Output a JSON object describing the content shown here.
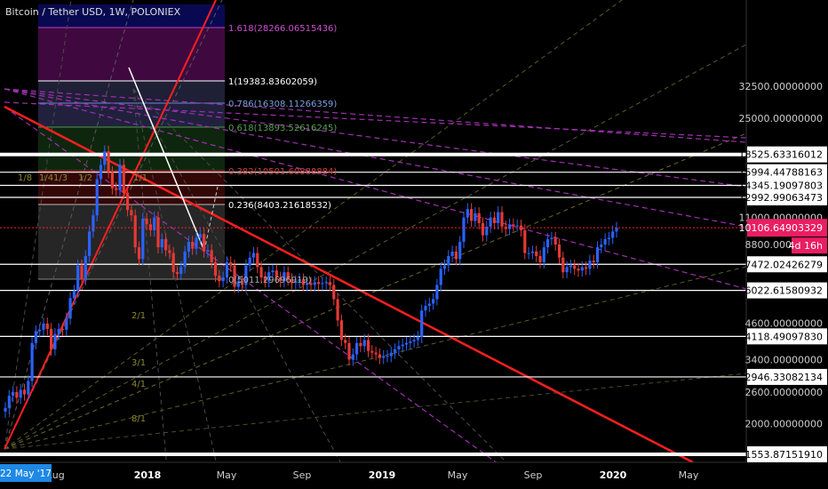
{
  "header": {
    "title": "Bitcoin / Tether USD, 1W, POLONIEX"
  },
  "colors": {
    "background": "#000000",
    "up": "#2962ff",
    "down": "#e53935",
    "trend_red": "#ff1f1f",
    "fan_purple": "#b040c8",
    "fan_yellow": "#8a8a30",
    "fan_grey": "#8a8a8a",
    "current_price_bg": "#e91e63"
  },
  "chart_data": {
    "type": "candlestick",
    "title": "Bitcoin / Tether USD, 1W, POLONIEX",
    "y_scale": "log",
    "ylim": [
      1450,
      36000
    ],
    "x_ticks": [
      "Aug",
      "2018",
      "May",
      "Sep",
      "2019",
      "May",
      "Sep",
      "2020",
      "May"
    ],
    "x_start_label": "22 May '17",
    "y_ticks": [
      "32500.00000000",
      "25000.00000000",
      "11000.00000000",
      "8800.00000000",
      "4600.00000000",
      "3400.00000000",
      "2600.00000000",
      "2000.00000000"
    ],
    "horizontal_levels": [
      "18525.63316012",
      "15994.44788163",
      "14345.19097803",
      "12992.99063473",
      "7472.02426279",
      "6022.61580932",
      "4118.49097830",
      "2946.33082134",
      "1553.87151910"
    ],
    "current_price": "10106.64903329",
    "countdown": "4d 16h",
    "fib_labels": [
      "1.618(28266.06515436)",
      "1(19383.83602059)",
      "0.786(16308.11266359)",
      "0.618(13893.52616245)",
      "0.382(10501.60888884)",
      "0.236(8403.21618532)",
      "0(5011.29696919)"
    ],
    "fan_labels": [
      "8/1",
      "4/1",
      "3/1",
      "2/1",
      "1/1",
      "1/2",
      "1/3",
      "1/4",
      "1/8"
    ],
    "weekly_closes": [
      2280,
      2520,
      2600,
      2480,
      2650,
      2550,
      2850,
      3900,
      4300,
      4350,
      4580,
      4380,
      3700,
      4200,
      4380,
      4350,
      4770,
      5650,
      6000,
      7400,
      6600,
      8000,
      9800,
      11200,
      15100,
      17000,
      19000,
      16000,
      14000,
      13800,
      17000,
      13500,
      11700,
      11200,
      8600,
      7800,
      10900,
      10400,
      9900,
      11000,
      8600,
      9200,
      8400,
      8200,
      7000,
      6900,
      7300,
      8300,
      9000,
      8500,
      9300,
      9600,
      8300,
      8400,
      7600,
      6800,
      6500,
      6700,
      7600,
      7400,
      6200,
      6500,
      6300,
      7400,
      7900,
      8200,
      7300,
      6700,
      6500,
      7000,
      7100,
      6700,
      6500,
      7000,
      6600,
      6400,
      6500,
      6600,
      6300,
      6400,
      6300,
      6450,
      6350,
      6400,
      6450,
      6300,
      5600,
      4700,
      4000,
      3900,
      3400,
      3550,
      3900,
      3800,
      4000,
      3650,
      3600,
      3550,
      3450,
      3500,
      3500,
      3600,
      3700,
      3800,
      3850,
      3900,
      3950,
      4000,
      4100,
      5100,
      5300,
      5400,
      5600,
      6300,
      7200,
      7400,
      8000,
      8300,
      7800,
      9000,
      11000,
      11800,
      10700,
      11400,
      10500,
      9500,
      10200,
      11000,
      10500,
      11500,
      10200,
      10000,
      10400,
      10300,
      10300,
      9900,
      8200,
      8200,
      8300,
      8000,
      7600,
      8600,
      9200,
      9300,
      8800,
      7900,
      7000,
      7300,
      7400,
      7200,
      7100,
      7300,
      7200,
      7700,
      7600,
      8600,
      8800,
      9200,
      9300,
      9800,
      10100
    ]
  }
}
